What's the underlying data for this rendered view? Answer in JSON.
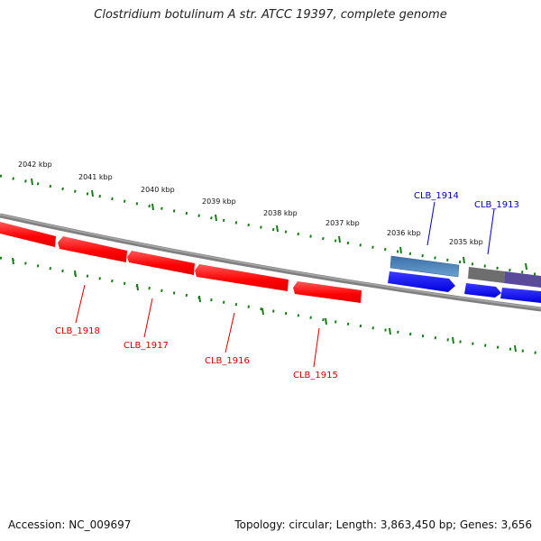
{
  "title": "Clostridium botulinum A str. ATCC 19397, complete genome",
  "footer": {
    "accession": "Accession: NC_009697",
    "topology": "Topology: circular; Length: 3,863,450 bp; Genes: 3,656"
  },
  "colors": {
    "backbone": "#808080",
    "ticks": "#1a7a1a",
    "reverse_gene": "#ff1a1a",
    "forward_gene": "#0a0aff",
    "forward_gene_light": "#4a86c0",
    "gray_feature": "#6e6e6e",
    "purple_feature": "#5a4a9a",
    "reverse_label": "#cc0000",
    "forward_label": "#0000aa"
  },
  "scale_ticks": [
    "2042 kbp",
    "2041 kbp",
    "2040 kbp",
    "2039 kbp",
    "2038 kbp",
    "2037 kbp",
    "2036 kbp",
    "2035 kbp"
  ],
  "genes_reverse": [
    "CLB_1918",
    "CLB_1917",
    "CLB_1916",
    "CLB_1915"
  ],
  "genes_forward": [
    "CLB_1914",
    "CLB_1913"
  ]
}
